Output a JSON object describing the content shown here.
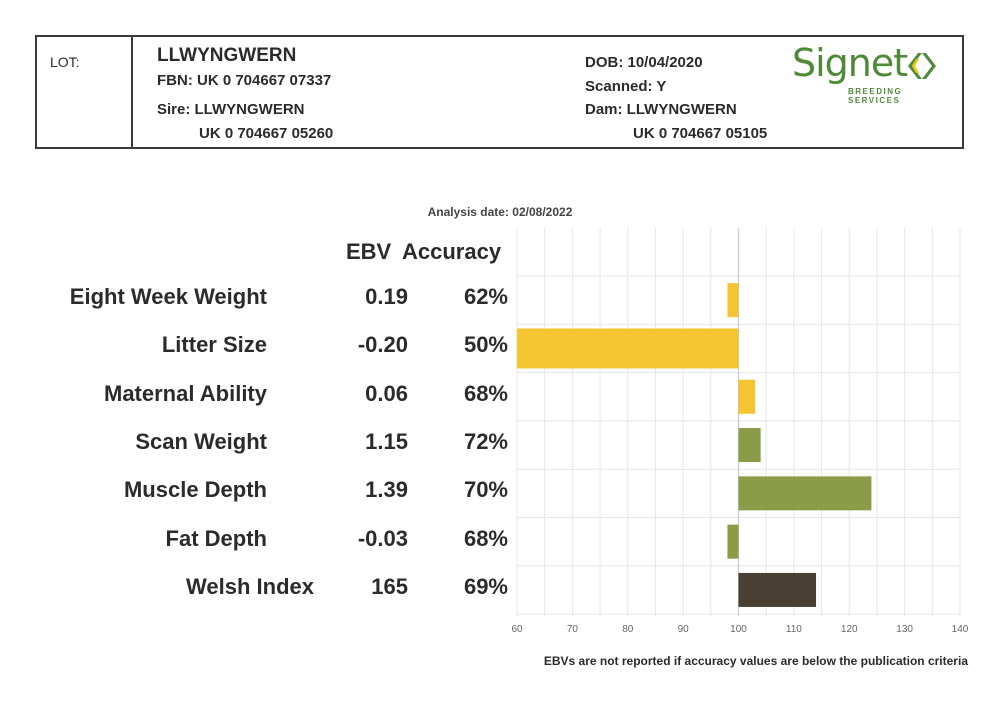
{
  "header": {
    "lot_label": "LOT:",
    "animal_name": "LLWYNGWERN",
    "fbn": "FBN: UK 0 704667 07337",
    "sire": "Sire: LLWYNGWERN",
    "sire_id": "UK 0 704667 05260",
    "dob": "DOB: 10/04/2020",
    "scanned": "Scanned: Y",
    "dam": "Dam: LLWYNGWERN",
    "dam_id": "UK 0 704667 05105"
  },
  "logo": {
    "word": "Signet",
    "sub": "BREEDING SERVICES",
    "color": "#4f8a3a",
    "accent": "#f2c40a"
  },
  "analysis_date": "Analysis date: 02/08/2022",
  "columns": {
    "ebv": "EBV",
    "accuracy": "Accuracy"
  },
  "footnote": "EBVs are not reported if accuracy values are below the publication criteria",
  "chart_data": {
    "type": "bar",
    "orientation": "horizontal",
    "baseline": 100,
    "xlim": [
      60,
      140
    ],
    "xticks": [
      "60",
      "70",
      "80",
      "90",
      "100",
      "110",
      "120",
      "130",
      "140"
    ],
    "grid": true,
    "categories": [
      "Eight Week Weight",
      "Litter Size",
      "Maternal Ability",
      "Scan Weight",
      "Muscle Depth",
      "Fat Depth",
      "Welsh Index"
    ],
    "ebv": [
      "0.19",
      "-0.20",
      "0.06",
      "1.15",
      "1.39",
      "-0.03",
      "165"
    ],
    "accuracy": [
      "62%",
      "50%",
      "68%",
      "72%",
      "70%",
      "68%",
      "69%"
    ],
    "values": [
      98,
      60,
      103,
      104,
      124,
      98,
      114
    ],
    "colors": [
      "#f4c531",
      "#f4c531",
      "#f4c531",
      "#8a9c48",
      "#8a9c48",
      "#8a9c48",
      "#4a3f33"
    ]
  }
}
